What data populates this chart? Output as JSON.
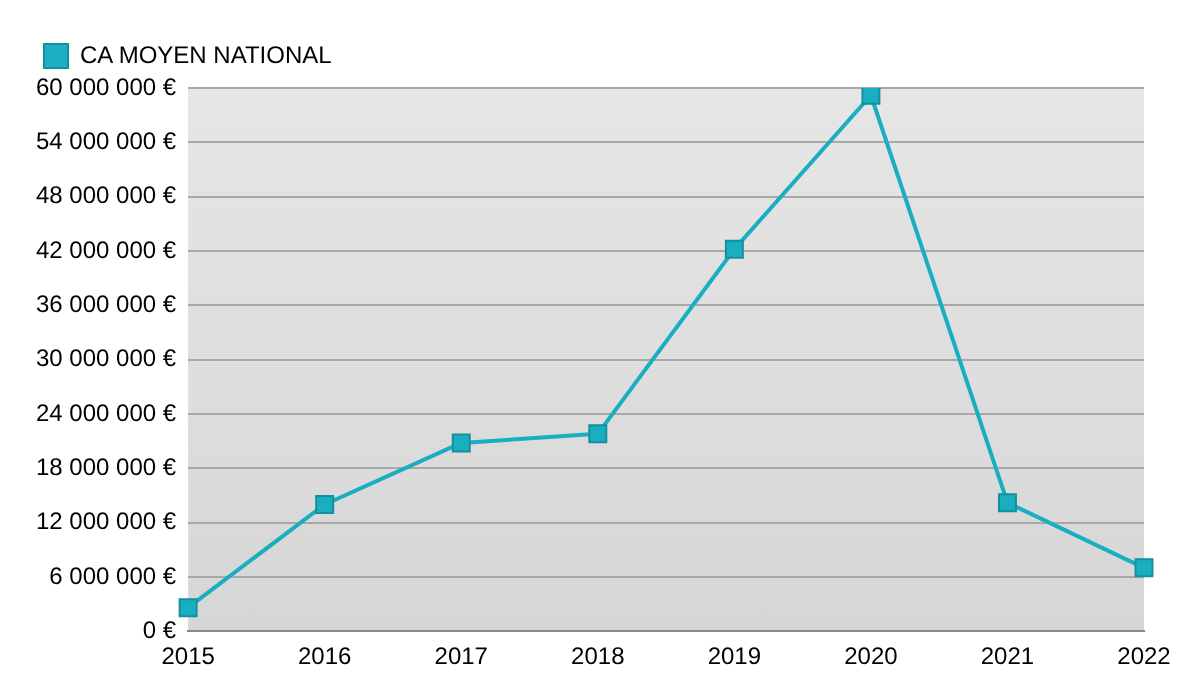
{
  "chart_data": {
    "type": "line",
    "categories": [
      "2015",
      "2016",
      "2017",
      "2018",
      "2019",
      "2020",
      "2021",
      "2022"
    ],
    "series": [
      {
        "name": "CA MOYEN NATIONAL",
        "color": "#1aafc0",
        "values": [
          2600000,
          14000000,
          20800000,
          21800000,
          42200000,
          59200000,
          14200000,
          7000000
        ]
      }
    ],
    "ylim": [
      0,
      60000000
    ],
    "yticks": [
      {
        "value": 0,
        "label": "0 €"
      },
      {
        "value": 6000000,
        "label": "6 000 000 €"
      },
      {
        "value": 12000000,
        "label": "12 000 000 €"
      },
      {
        "value": 18000000,
        "label": "18 000 000 €"
      },
      {
        "value": 24000000,
        "label": "24 000 000 €"
      },
      {
        "value": 30000000,
        "label": "30 000 000 €"
      },
      {
        "value": 36000000,
        "label": "36 000 000 €"
      },
      {
        "value": 42000000,
        "label": "42 000 000 €"
      },
      {
        "value": 48000000,
        "label": "48 000 000 €"
      },
      {
        "value": 54000000,
        "label": "54 000 000 €"
      },
      {
        "value": 60000000,
        "label": "60 000 000 €"
      }
    ],
    "grid": "y",
    "legend": "top left",
    "marker": "square",
    "line_style": "solid"
  }
}
